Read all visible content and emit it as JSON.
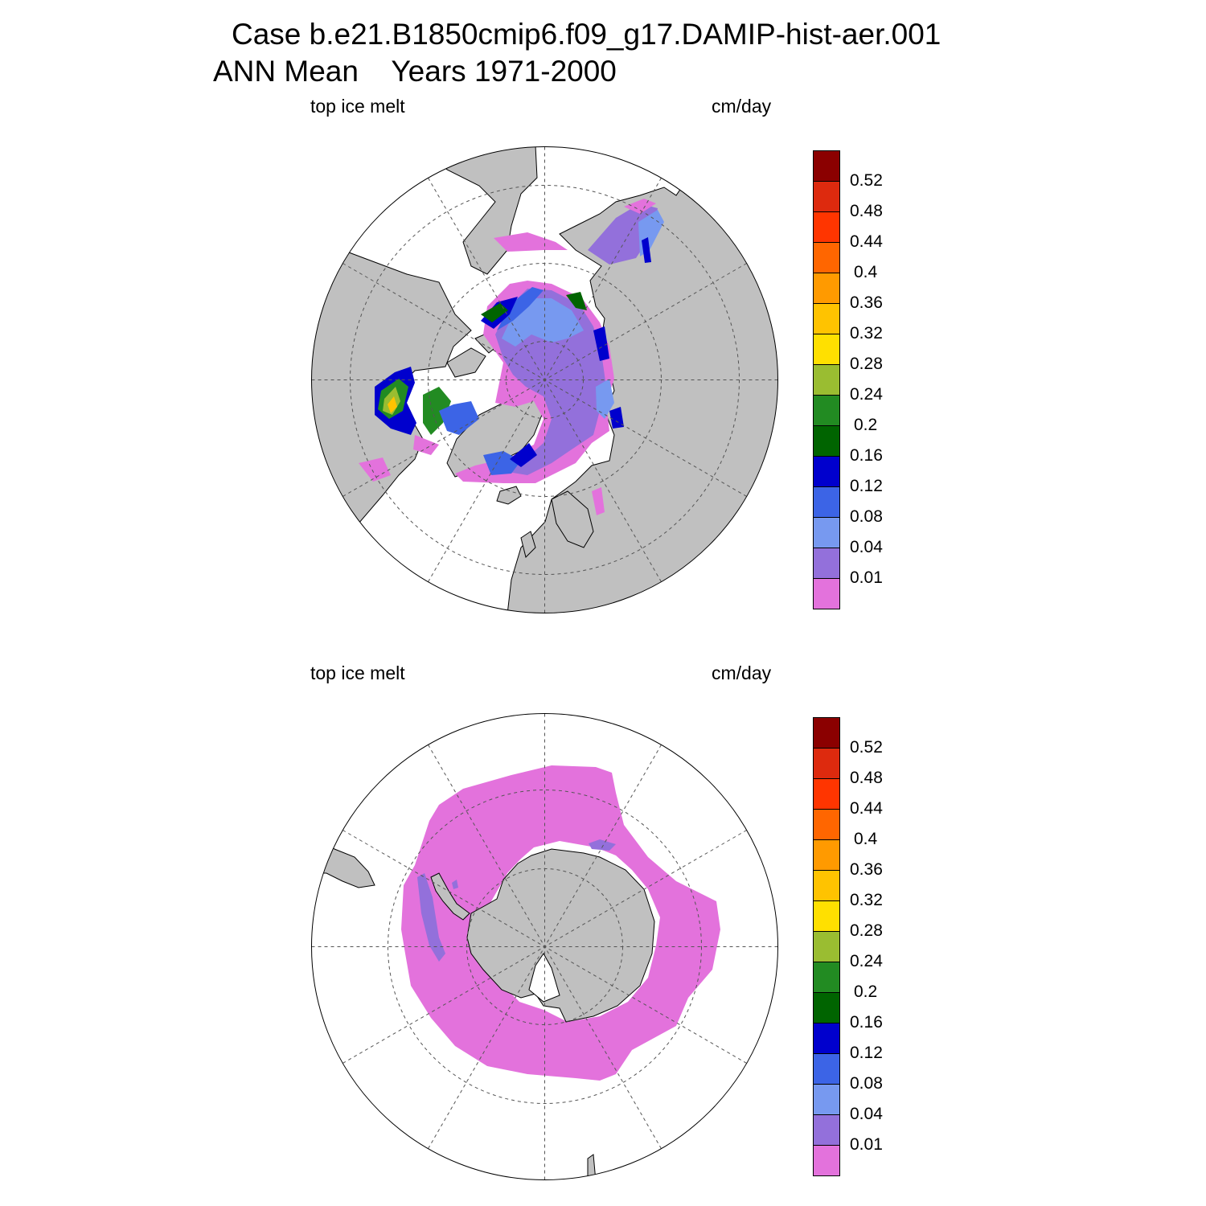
{
  "figure": {
    "title_line1": "Case b.e21.B1850cmip6.f09_g17.DAMIP-hist-aer.001",
    "title_line2": "ANN Mean    Years 1971-2000"
  },
  "panels": [
    {
      "id": "nh",
      "hemisphere": "north",
      "left_label": "top ice melt",
      "right_label": "cm/day"
    },
    {
      "id": "sh",
      "hemisphere": "south",
      "left_label": "top ice melt",
      "right_label": "cm/day"
    }
  ],
  "colorbar": {
    "levels": [
      "0.01",
      "0.04",
      "0.08",
      "0.12",
      "0.16",
      "0.2",
      "0.24",
      "0.28",
      "0.32",
      "0.36",
      "0.4",
      "0.44",
      "0.48",
      "0.52"
    ],
    "colors": [
      "#e372dc",
      "#9370db",
      "#7799f0",
      "#3c64e6",
      "#0000cd",
      "#006400",
      "#228b22",
      "#9abd31",
      "#ffe000",
      "#ffc300",
      "#ff9a00",
      "#ff6600",
      "#ff3500",
      "#dd2a0e",
      "#8b0000"
    ]
  },
  "colors": {
    "land": "#c0c0c0",
    "ocean": "#ffffff",
    "coastline": "#000000",
    "grid": "#555555"
  }
}
